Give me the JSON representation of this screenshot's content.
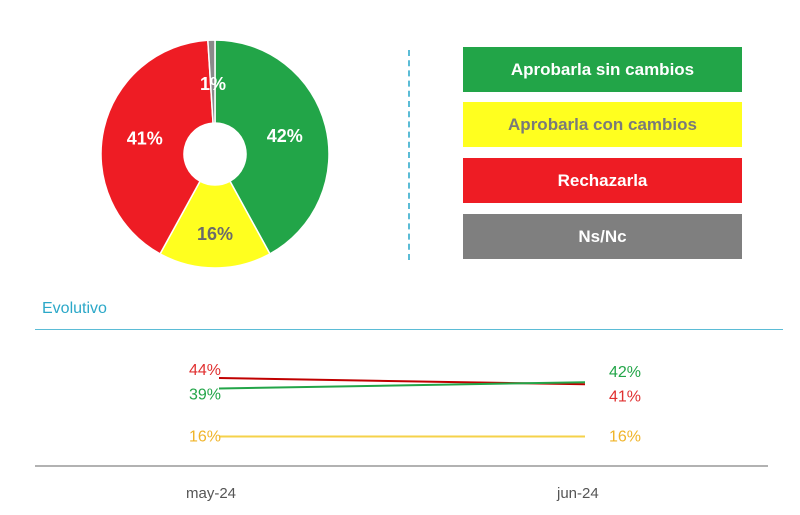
{
  "chart_data": [
    {
      "type": "pie",
      "variant": "donut",
      "slices": [
        {
          "label": "Aprobarla sin cambios",
          "value": 42,
          "text": "42%",
          "color": "#22a548"
        },
        {
          "label": "Aprobarla con cambios",
          "value": 16,
          "text": "16%",
          "color": "#ffff1f"
        },
        {
          "label": "Rechazarla",
          "value": 41,
          "text": "41%",
          "color": "#ee1c24"
        },
        {
          "label": "Ns/Nc",
          "value": 1,
          "text": "1%",
          "color": "#8a8a8a"
        }
      ],
      "legend": [
        {
          "label": "Aprobarla sin cambios",
          "bg": "#22a548",
          "fg": "#ffffff"
        },
        {
          "label": "Aprobarla con cambios",
          "bg": "#ffff1f",
          "fg": "#7a7a7a"
        },
        {
          "label": "Rechazarla",
          "bg": "#ee1c24",
          "fg": "#ffffff"
        },
        {
          "label": "Ns/Nc",
          "bg": "#7f7f7f",
          "fg": "#ffffff"
        }
      ],
      "legend_position": "right"
    },
    {
      "type": "line",
      "title": "Evolutivo",
      "categories": [
        "may-24",
        "jun-24"
      ],
      "series": [
        {
          "name": "Rechazarla",
          "values": [
            44,
            41
          ],
          "labels": [
            "44%",
            "41%"
          ],
          "color": "#c00000",
          "label_color": "#e03030"
        },
        {
          "name": "Aprobarla sin cambios",
          "values": [
            39,
            42
          ],
          "labels": [
            "39%",
            "42%"
          ],
          "color": "#22a548",
          "label_color": "#22a548"
        },
        {
          "name": "Aprobarla con cambios",
          "values": [
            16,
            16
          ],
          "labels": [
            "16%",
            "16%"
          ],
          "color": "#f5d24a",
          "label_color": "#f0b429"
        }
      ]
    }
  ]
}
